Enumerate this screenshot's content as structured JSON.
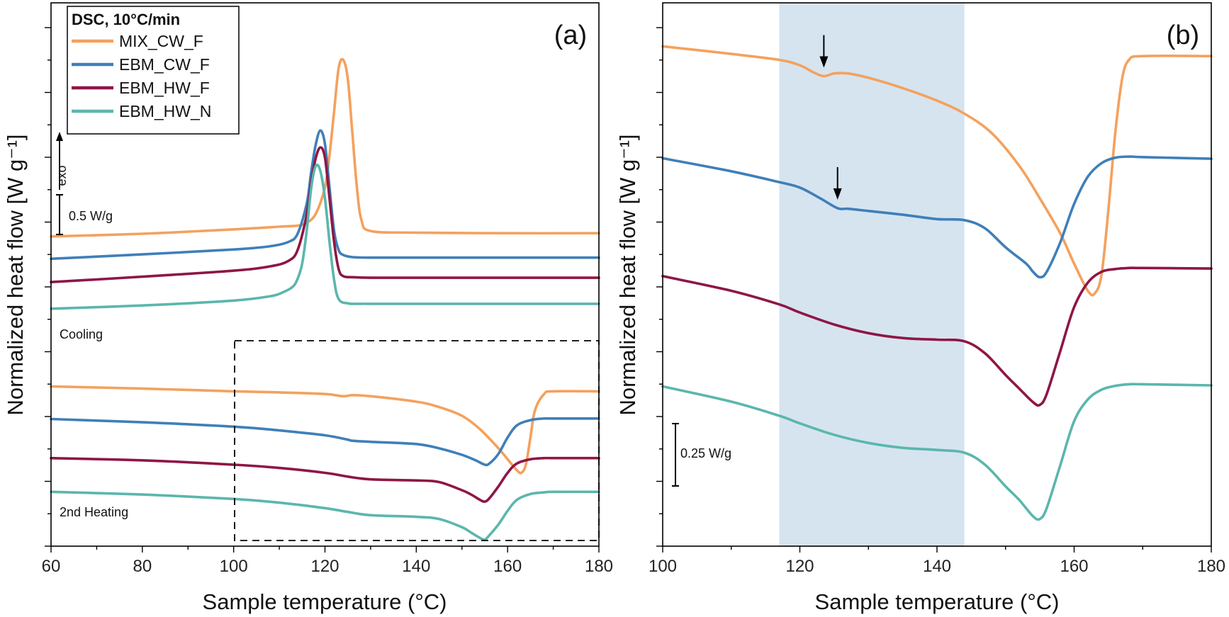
{
  "colors": {
    "MIX_CW_F": "#F4A15D",
    "EBM_CW_F": "#3F7FB9",
    "EBM_HW_F": "#8E1646",
    "EBM_HW_N": "#5BB6AD",
    "highlight": "#D6E4F0"
  },
  "chart_data": [
    {
      "type": "line",
      "panel_label": "(a)",
      "xlabel": "Sample temperature (°C)",
      "ylabel": "Normalized heat flow [W g⁻¹]",
      "xlim": [
        60,
        180
      ],
      "xticks": [
        60,
        80,
        100,
        120,
        140,
        160,
        180
      ],
      "yticks_labeled": false,
      "ylim_rel": [
        0,
        1
      ],
      "legend": {
        "title": "DSC, 10°C/min",
        "position": "top-left",
        "entries": [
          "MIX_CW_F",
          "EBM_CW_F",
          "EBM_HW_F",
          "EBM_HW_N"
        ]
      },
      "annotations": {
        "exo": "exo",
        "scale_bar": "0.5 W/g",
        "cooling": "Cooling",
        "heating": "2nd Heating",
        "zoom_box_x": [
          100,
          180
        ]
      },
      "series": [
        {
          "name": "MIX_CW_F",
          "segment": "Cooling",
          "x": [
            60,
            80,
            100,
            110,
            114,
            116,
            118,
            120,
            121,
            122,
            123,
            124,
            125,
            126,
            127,
            128,
            130,
            140,
            160,
            180
          ],
          "y": [
            0.57,
            0.575,
            0.583,
            0.588,
            0.59,
            0.595,
            0.612,
            0.66,
            0.72,
            0.8,
            0.88,
            0.895,
            0.86,
            0.76,
            0.66,
            0.6,
            0.58,
            0.577,
            0.576,
            0.576
          ]
        },
        {
          "name": "EBM_CW_F",
          "segment": "Cooling",
          "x": [
            60,
            80,
            100,
            108,
            112,
            114,
            116,
            117,
            118,
            119,
            120,
            121,
            122,
            123,
            124,
            126,
            130,
            140,
            160,
            180
          ],
          "y": [
            0.529,
            0.537,
            0.546,
            0.552,
            0.56,
            0.575,
            0.63,
            0.69,
            0.74,
            0.765,
            0.74,
            0.66,
            0.58,
            0.545,
            0.536,
            0.532,
            0.531,
            0.531,
            0.531,
            0.531
          ]
        },
        {
          "name": "EBM_HW_F",
          "segment": "Cooling",
          "x": [
            60,
            80,
            100,
            108,
            112,
            114,
            116,
            117,
            118,
            119,
            120,
            121,
            122,
            123,
            124,
            126,
            130,
            140,
            160,
            180
          ],
          "y": [
            0.486,
            0.496,
            0.507,
            0.515,
            0.525,
            0.545,
            0.61,
            0.67,
            0.715,
            0.734,
            0.715,
            0.64,
            0.56,
            0.51,
            0.497,
            0.495,
            0.494,
            0.494,
            0.494,
            0.494
          ]
        },
        {
          "name": "EBM_HW_N",
          "segment": "Cooling",
          "x": [
            60,
            80,
            100,
            108,
            111,
            113,
            114,
            115,
            116,
            117,
            118,
            119,
            120,
            121,
            122,
            123,
            125,
            130,
            160,
            180
          ],
          "y": [
            0.437,
            0.443,
            0.452,
            0.46,
            0.468,
            0.478,
            0.492,
            0.52,
            0.58,
            0.66,
            0.7,
            0.69,
            0.64,
            0.56,
            0.49,
            0.455,
            0.447,
            0.446,
            0.446,
            0.446
          ]
        },
        {
          "name": "MIX_CW_F",
          "segment": "2nd Heating",
          "x": [
            60,
            80,
            100,
            110,
            120,
            124,
            126,
            130,
            140,
            145,
            150,
            154,
            158,
            160,
            162,
            163,
            164,
            165,
            166,
            168,
            170,
            180
          ],
          "y": [
            0.294,
            0.29,
            0.285,
            0.283,
            0.28,
            0.276,
            0.278,
            0.276,
            0.266,
            0.256,
            0.24,
            0.215,
            0.18,
            0.16,
            0.14,
            0.135,
            0.15,
            0.2,
            0.25,
            0.28,
            0.285,
            0.285
          ]
        },
        {
          "name": "EBM_CW_F",
          "segment": "2nd Heating",
          "x": [
            60,
            80,
            100,
            110,
            120,
            125,
            126,
            130,
            140,
            145,
            150,
            153,
            155,
            156,
            158,
            160,
            162,
            165,
            168,
            170,
            180
          ],
          "y": [
            0.234,
            0.228,
            0.22,
            0.213,
            0.204,
            0.196,
            0.194,
            0.192,
            0.188,
            0.18,
            0.168,
            0.158,
            0.15,
            0.152,
            0.17,
            0.2,
            0.222,
            0.232,
            0.235,
            0.235,
            0.235
          ]
        },
        {
          "name": "EBM_HW_F",
          "segment": "2nd Heating",
          "x": [
            60,
            80,
            100,
            110,
            120,
            125,
            130,
            140,
            145,
            150,
            152,
            154,
            155,
            156,
            158,
            160,
            162,
            165,
            168,
            170,
            180
          ],
          "y": [
            0.162,
            0.158,
            0.15,
            0.144,
            0.135,
            0.128,
            0.123,
            0.121,
            0.118,
            0.103,
            0.095,
            0.085,
            0.082,
            0.088,
            0.11,
            0.135,
            0.152,
            0.16,
            0.162,
            0.162,
            0.162
          ]
        },
        {
          "name": "EBM_HW_N",
          "segment": "2nd Heating",
          "x": [
            60,
            80,
            100,
            110,
            120,
            125,
            130,
            140,
            145,
            150,
            152,
            154,
            155,
            156,
            158,
            160,
            162,
            165,
            168,
            170,
            180
          ],
          "y": [
            0.1,
            0.095,
            0.087,
            0.08,
            0.07,
            0.063,
            0.057,
            0.054,
            0.05,
            0.035,
            0.025,
            0.015,
            0.012,
            0.02,
            0.04,
            0.065,
            0.085,
            0.096,
            0.099,
            0.1,
            0.1
          ]
        }
      ]
    },
    {
      "type": "line",
      "panel_label": "(b)",
      "xlabel": "Sample temperature (°C)",
      "ylabel": "Normalized heat flow [W g⁻¹]",
      "xlim": [
        100,
        180
      ],
      "xticks": [
        100,
        120,
        140,
        160,
        180
      ],
      "yticks_labeled": false,
      "ylim_rel": [
        0,
        1
      ],
      "highlight_band_x": [
        117,
        144
      ],
      "annotations": {
        "scale_bar": "0.25 W/g",
        "arrows_at_x": [
          123.5,
          125.5
        ]
      },
      "series": [
        {
          "name": "MIX_CW_F",
          "x": [
            100,
            110,
            117,
            120,
            122,
            123.5,
            125,
            127,
            130,
            135,
            140,
            144,
            148,
            152,
            155,
            158,
            160,
            162,
            163,
            164,
            165,
            166,
            167,
            168,
            170,
            180
          ],
          "y": [
            0.92,
            0.906,
            0.895,
            0.885,
            0.872,
            0.865,
            0.87,
            0.87,
            0.862,
            0.843,
            0.82,
            0.796,
            0.76,
            0.7,
            0.64,
            0.575,
            0.52,
            0.47,
            0.465,
            0.5,
            0.62,
            0.76,
            0.86,
            0.895,
            0.902,
            0.902
          ]
        },
        {
          "name": "EBM_CW_F",
          "x": [
            100,
            110,
            117,
            120,
            123,
            125.5,
            127,
            130,
            135,
            140,
            144,
            147,
            150,
            153,
            154,
            155,
            156,
            158,
            160,
            162,
            164,
            166,
            168,
            170,
            180
          ],
          "y": [
            0.714,
            0.69,
            0.67,
            0.66,
            0.64,
            0.622,
            0.621,
            0.617,
            0.61,
            0.602,
            0.6,
            0.585,
            0.55,
            0.52,
            0.505,
            0.495,
            0.505,
            0.56,
            0.63,
            0.68,
            0.705,
            0.715,
            0.717,
            0.716,
            0.713
          ]
        },
        {
          "name": "EBM_HW_F",
          "x": [
            100,
            110,
            117,
            120,
            125,
            130,
            135,
            140,
            144,
            147,
            150,
            152,
            154,
            155,
            156,
            158,
            160,
            162,
            164,
            166,
            168,
            170,
            180
          ],
          "y": [
            0.497,
            0.47,
            0.445,
            0.43,
            0.408,
            0.392,
            0.383,
            0.38,
            0.377,
            0.355,
            0.315,
            0.29,
            0.265,
            0.26,
            0.28,
            0.36,
            0.44,
            0.485,
            0.505,
            0.51,
            0.512,
            0.512,
            0.511
          ]
        },
        {
          "name": "EBM_HW_N",
          "x": [
            100,
            110,
            117,
            120,
            125,
            130,
            135,
            140,
            144,
            147,
            150,
            152,
            154,
            155,
            156,
            158,
            160,
            162,
            164,
            166,
            168,
            170,
            180
          ],
          "y": [
            0.294,
            0.266,
            0.24,
            0.226,
            0.205,
            0.19,
            0.181,
            0.177,
            0.172,
            0.15,
            0.11,
            0.085,
            0.055,
            0.05,
            0.07,
            0.15,
            0.23,
            0.27,
            0.288,
            0.295,
            0.298,
            0.298,
            0.296
          ]
        }
      ]
    }
  ]
}
